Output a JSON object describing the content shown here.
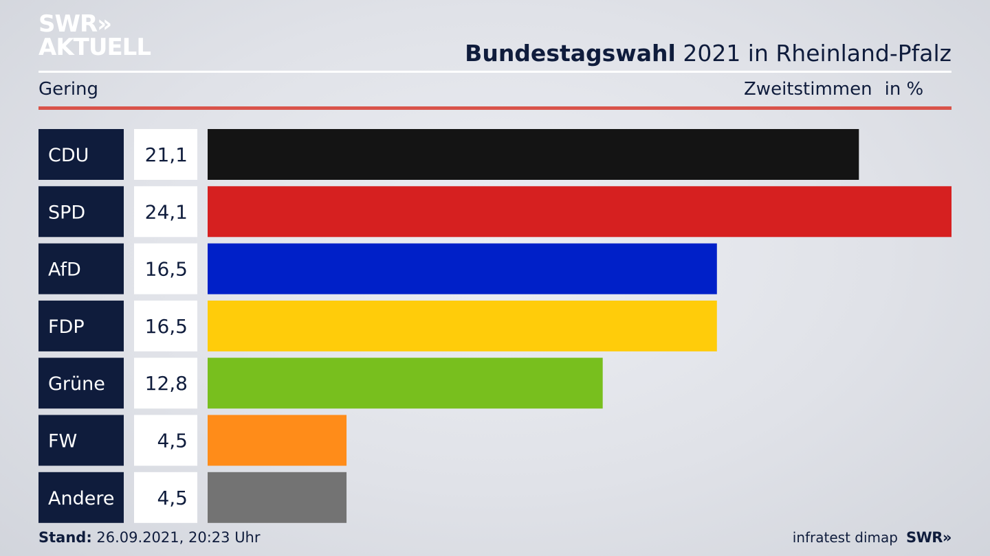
{
  "logo": {
    "line1": "SWR»",
    "line2": "AKTUELL"
  },
  "title": {
    "bold": "Bundestagswahl",
    "rest": "2021 in Rheinland-Pfalz"
  },
  "subtitle": {
    "left": "Gering",
    "right": "Zweitstimmen",
    "unit": "in %"
  },
  "footer": {
    "stand_label": "Stand:",
    "stand_value": "26.09.2021, 20:23 Uhr",
    "source": "infratest dimap",
    "brand": "SWR»"
  },
  "colors": {
    "label_bg": "#0f1c3c",
    "value_bg": "#ffffff",
    "accent_red": "#d9534a"
  },
  "chart_data": {
    "type": "bar",
    "orientation": "horizontal",
    "categories": [
      "CDU",
      "SPD",
      "AfD",
      "FDP",
      "Grüne",
      "FW",
      "Andere"
    ],
    "values": [
      21.1,
      24.1,
      16.5,
      16.5,
      12.8,
      4.5,
      4.5
    ],
    "value_labels": [
      "21,1",
      "24,1",
      "16,5",
      "16,5",
      "12,8",
      "4,5",
      "4,5"
    ],
    "colors": [
      "#141414",
      "#d62020",
      "#0020c8",
      "#ffcc0a",
      "#78bf1e",
      "#ff8c19",
      "#737373"
    ]
  }
}
